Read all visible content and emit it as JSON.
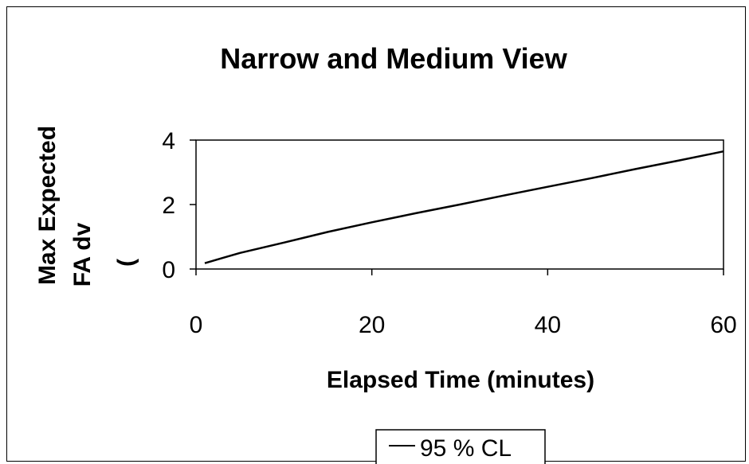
{
  "chart_data": {
    "type": "line",
    "title": "Narrow and Medium View",
    "xlabel": "Elapsed Time (minutes)",
    "ylabel": [
      "Max Expected",
      "FA dv",
      "("
    ],
    "xlim": [
      0,
      60
    ],
    "ylim": [
      0,
      4
    ],
    "xticks": [
      0,
      20,
      40,
      60
    ],
    "yticks": [
      0,
      2,
      4
    ],
    "grid": false,
    "legend_position": "bottom-center",
    "series": [
      {
        "name": "95 % CL",
        "color": "#000000",
        "x": [
          1,
          3,
          5,
          10,
          15,
          20,
          25,
          30,
          35,
          40,
          45,
          50,
          55,
          60
        ],
        "y": [
          0.18,
          0.34,
          0.5,
          0.82,
          1.15,
          1.45,
          1.73,
          2.0,
          2.28,
          2.55,
          2.82,
          3.1,
          3.37,
          3.65
        ]
      }
    ]
  }
}
